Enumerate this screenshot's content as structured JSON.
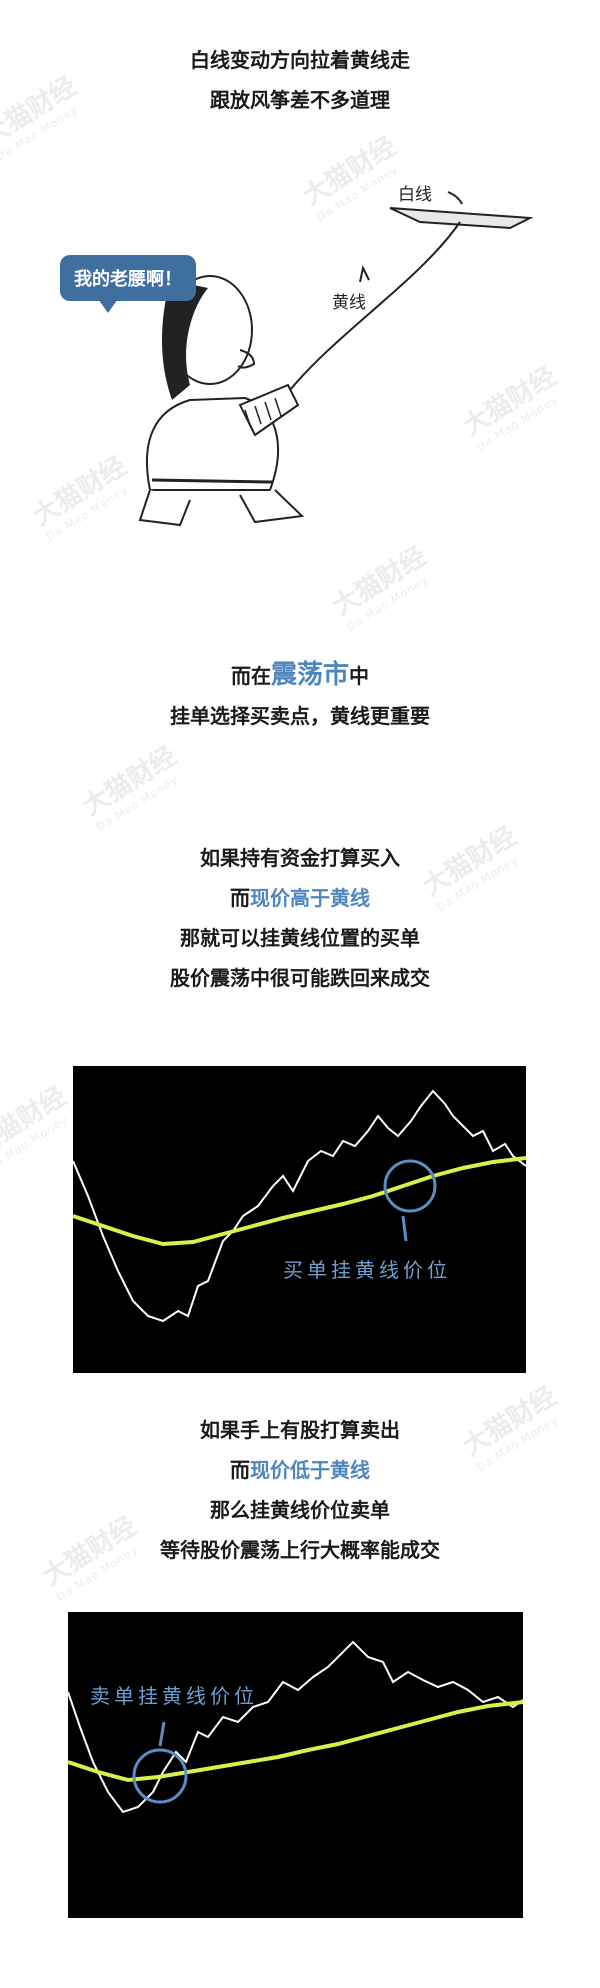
{
  "watermark": {
    "text": "大猫财经",
    "subtext": "Da Mao Money"
  },
  "section1": {
    "lines": [
      "白线变动方向拉着黄线走",
      "跟放风筝差不多道理"
    ]
  },
  "cartoon": {
    "bubble": "我的老腰啊！",
    "label_white": "白线",
    "label_yellow": "黄线"
  },
  "section2": {
    "prefix": "而在",
    "highlight": "震荡市",
    "suffix": "中",
    "line2": "挂单选择买卖点，黄线更重要"
  },
  "section3": {
    "line1": "如果持有资金打算买入",
    "line2_prefix": "而",
    "line2_highlight": "现价高于黄线",
    "line3": "那就可以挂黄线位置的买单",
    "line4": "股价震荡中很可能跌回来成交"
  },
  "chart1": {
    "label": "买单挂黄线价位"
  },
  "section4": {
    "line1": "如果手上有股打算卖出",
    "line2_prefix": "而",
    "line2_highlight": "现价低于黄线",
    "line3": "那么挂黄线价位卖单",
    "line4": "等待股价震荡上行大概率能成交"
  },
  "chart2": {
    "label": "卖单挂黄线价位"
  },
  "colors": {
    "highlight": "#4e86bd",
    "yellow_line": "#d8f04a",
    "circle": "#5b8fc4"
  }
}
